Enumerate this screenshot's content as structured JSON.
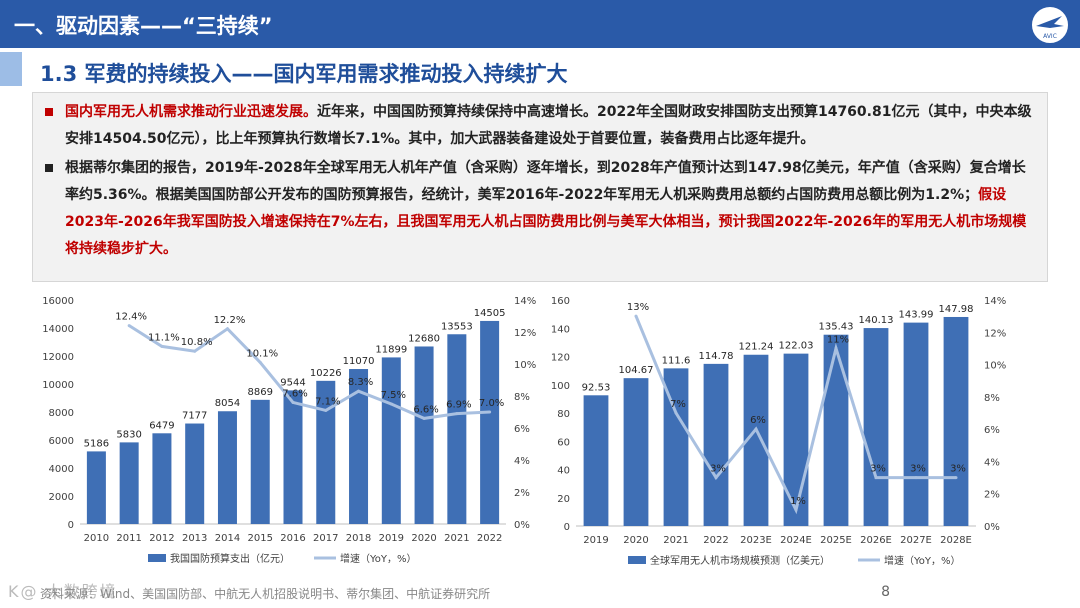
{
  "header": {
    "title": "一、驱动因素——“三持续”",
    "logo_text": "AVIC"
  },
  "subtitle": "1.3 军费的持续投入——国内军用需求推动投入持续扩大",
  "summary": {
    "p1_red": "国内军用无人机需求推动行业迅速发展。",
    "p1_rest": "近年来，中国国防预算持续保持中高速增长。2022年全国财政安排国防支出预算14760.81亿元（其中，中央本级安排14504.50亿元），比上年预算执行数增长7.1%。其中，加大武器装备建设处于首要位置，装备费用占比逐年提升。",
    "p2_black": "根据蒂尔集团的报告，2019年-2028年全球军用无人机年产值（含采购）逐年增长，到2028年产值预计达到147.98亿美元，年产值（含采购）复合增长率约5.36%。根据美国国防部公开发布的国防预算报告，经统计，美军2016年-2022年军用无人机采购费用总额约占国防费用总额比例为1.2%；",
    "p2_red": "假设2023年-2026年我军国防投入增速保持在7%左右，且我国军用无人机占国防费用比例与美军大体相当，预计我国2022年-2026年的军用无人机市场规模将持续稳步扩大。"
  },
  "colors": {
    "bar": "#3f6fb5",
    "line": "#a9c0e0",
    "red": "#c00000",
    "bullet_red": "#c00000",
    "bullet_black": "#222222"
  },
  "chart_data": [
    {
      "type": "bar",
      "categories": [
        "2010",
        "2011",
        "2012",
        "2013",
        "2014",
        "2015",
        "2016",
        "2017",
        "2018",
        "2019",
        "2020",
        "2021",
        "2022"
      ],
      "series": [
        {
          "name": "我国国防预算支出（亿元）",
          "type": "bar",
          "values": [
            5186,
            5830,
            6479,
            7177,
            8054,
            8869,
            9544,
            10226,
            11070,
            11899,
            12680,
            13553,
            14505
          ],
          "labels": [
            "5186",
            "5830",
            "6479",
            "7177",
            "8054",
            "8869",
            "9544",
            "10226",
            "11070",
            "11899",
            "12680",
            "13553",
            "14505"
          ]
        },
        {
          "name": "增速（YoY，%）",
          "type": "line",
          "axis": "right",
          "values": [
            null,
            12.4,
            11.1,
            10.8,
            12.2,
            10.1,
            7.6,
            7.1,
            8.3,
            7.5,
            6.6,
            6.9,
            7.0
          ],
          "labels": [
            null,
            "12.4%",
            "11.1%",
            "10.8%",
            "12.2%",
            "10.1%",
            "7.6%",
            "7.1%",
            "8.3%",
            "7.5%",
            "6.6%",
            "6.9%",
            "7.0%"
          ]
        }
      ],
      "ylim": [
        0,
        16000
      ],
      "yticks": [
        "0",
        "2000",
        "4000",
        "6000",
        "8000",
        "10000",
        "12000",
        "14000",
        "16000"
      ],
      "y2lim": [
        0,
        14
      ],
      "y2ticks": [
        "0%",
        "2%",
        "4%",
        "6%",
        "8%",
        "10%",
        "12%",
        "14%"
      ],
      "legend": {
        "bar": "我国国防预算支出（亿元）",
        "line": "增速（YoY，%）"
      }
    },
    {
      "type": "bar",
      "categories": [
        "2019",
        "2020",
        "2021",
        "2022",
        "2023E",
        "2024E",
        "2025E",
        "2026E",
        "2027E",
        "2028E"
      ],
      "series": [
        {
          "name": "全球军用无人机市场规模预测（亿美元）",
          "type": "bar",
          "values": [
            92.53,
            104.67,
            111.6,
            114.78,
            121.24,
            122.03,
            135.43,
            140.13,
            143.99,
            147.98
          ],
          "labels": [
            "92.53",
            "104.67",
            "111.6",
            "114.78",
            "121.24",
            "122.03",
            "135.43",
            "140.13",
            "143.99",
            "147.98"
          ]
        },
        {
          "name": "增速（YoY，%）",
          "type": "line",
          "axis": "right",
          "values": [
            null,
            13,
            7,
            3,
            6,
            1,
            11,
            3,
            3,
            3
          ],
          "labels": [
            null,
            "13%",
            "7%",
            "3%",
            "6%",
            "1%",
            "11%",
            "3%",
            "3%",
            "3%"
          ]
        }
      ],
      "ylim": [
        0,
        160
      ],
      "yticks": [
        "0",
        "20",
        "40",
        "60",
        "80",
        "100",
        "120",
        "140",
        "160"
      ],
      "y2lim": [
        0,
        14
      ],
      "y2ticks": [
        "0%",
        "2%",
        "4%",
        "6%",
        "8%",
        "10%",
        "12%",
        "14%"
      ],
      "legend": {
        "bar": "全球军用无人机市场规模预测（亿美元）",
        "line": "增速（YoY，%）"
      }
    }
  ],
  "footer": {
    "source": "资料来源：Wind、美国国防部、中航无人机招股说明书、蒂尔集团、中航证券研究所",
    "watermark": "K@ 大数跨境",
    "page": "8"
  }
}
